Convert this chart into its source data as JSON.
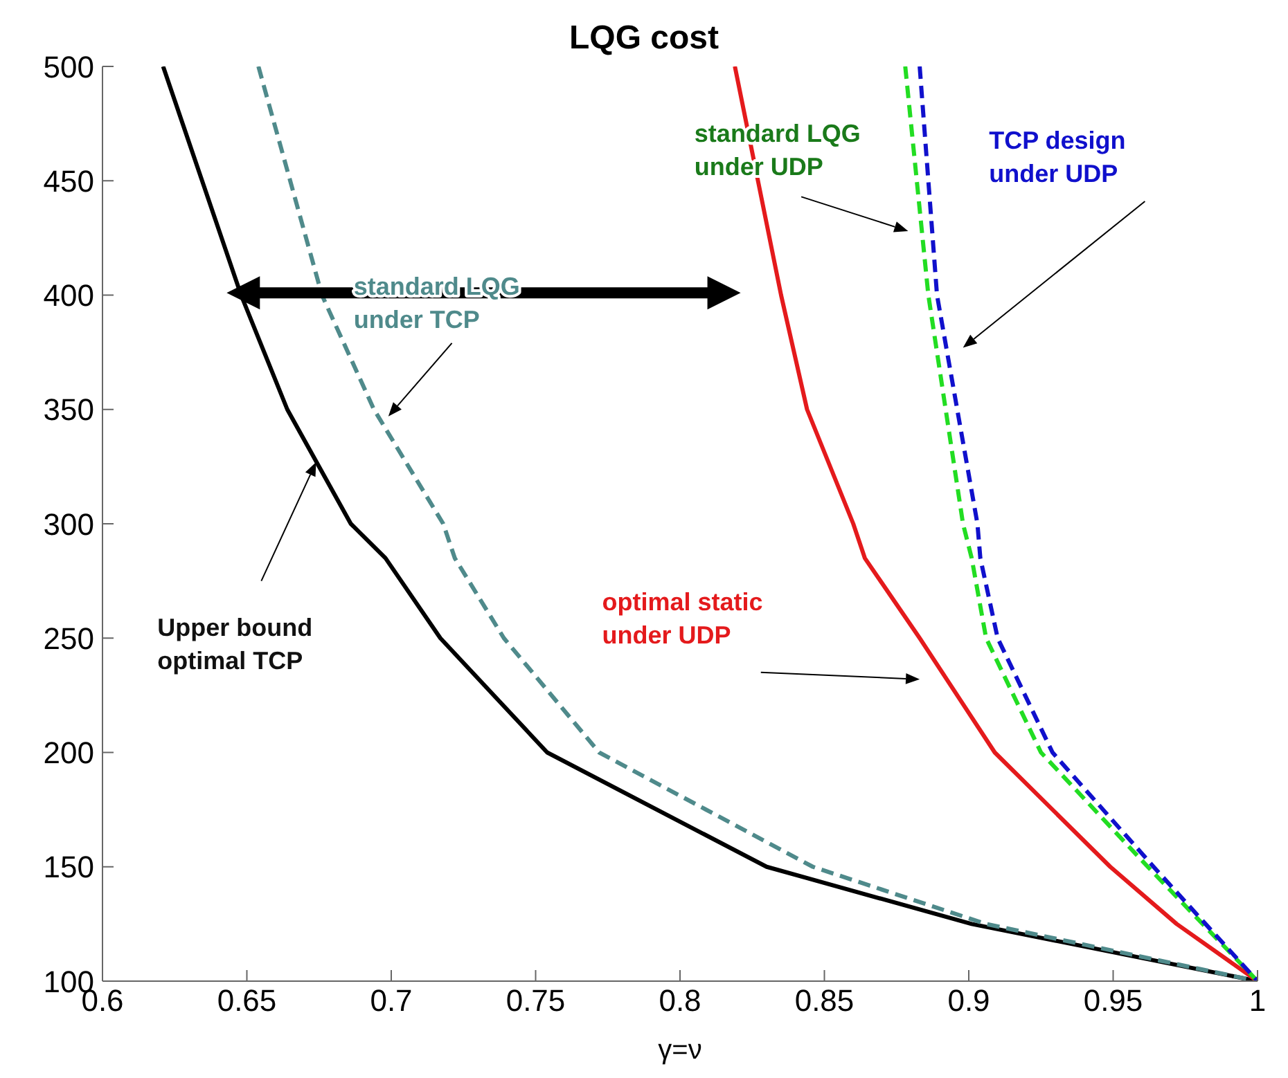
{
  "chart_data": {
    "type": "line",
    "title": "LQG cost",
    "xlabel": "γ=ν",
    "xlim": [
      0.6,
      1
    ],
    "xticks": [
      0.6,
      0.65,
      0.7,
      0.75,
      0.8,
      0.85,
      0.9,
      0.95,
      1
    ],
    "ylim": [
      100,
      500
    ],
    "yticks": [
      100,
      150,
      200,
      250,
      300,
      350,
      400,
      450,
      500
    ],
    "grid": false,
    "legend": false,
    "marker": "none",
    "series": [
      {
        "name": "Upper bound\noptimal TCP",
        "color": "#000000",
        "line_style": "solid",
        "x": [
          0.621,
          0.648,
          0.664,
          0.686,
          0.698,
          0.717,
          0.754,
          0.83,
          0.901,
          1
        ],
        "values": [
          500,
          400,
          350,
          300,
          285,
          250,
          200,
          150,
          125,
          100
        ]
      },
      {
        "name": "standard LQG\nunder TCP",
        "color": "#4f8a8b",
        "line_style": "dashed",
        "x": [
          0.654,
          0.676,
          0.694,
          0.718,
          0.722,
          0.739,
          0.772,
          0.846,
          0.906,
          1
        ],
        "values": [
          500,
          400,
          350,
          300,
          285,
          250,
          200,
          150,
          125,
          100
        ]
      },
      {
        "name": "optimal static\nunder UDP",
        "color": "#e41a1c",
        "line_style": "solid",
        "x": [
          0.819,
          0.827,
          0.835,
          0.844,
          0.86,
          0.864,
          0.883,
          0.909,
          0.949,
          0.972,
          1
        ],
        "values": [
          500,
          450,
          400,
          350,
          300,
          285,
          250,
          200,
          150,
          125,
          100
        ]
      },
      {
        "name": "standard LQG\nunder UDP",
        "color": "#22dd22",
        "line_style": "dashed",
        "x": [
          0.878,
          0.886,
          0.898,
          0.901,
          0.906,
          0.925,
          0.962,
          0.981,
          1
        ],
        "values": [
          500,
          400,
          300,
          285,
          250,
          200,
          150,
          125,
          100
        ]
      },
      {
        "name": "TCP design\nunder UDP",
        "color": "#1010cc",
        "line_style": "dashed",
        "x": [
          0.883,
          0.889,
          0.903,
          0.904,
          0.91,
          0.929,
          0.964,
          0.982,
          1
        ],
        "values": [
          500,
          400,
          300,
          285,
          250,
          200,
          150,
          125,
          100
        ]
      }
    ]
  }
}
